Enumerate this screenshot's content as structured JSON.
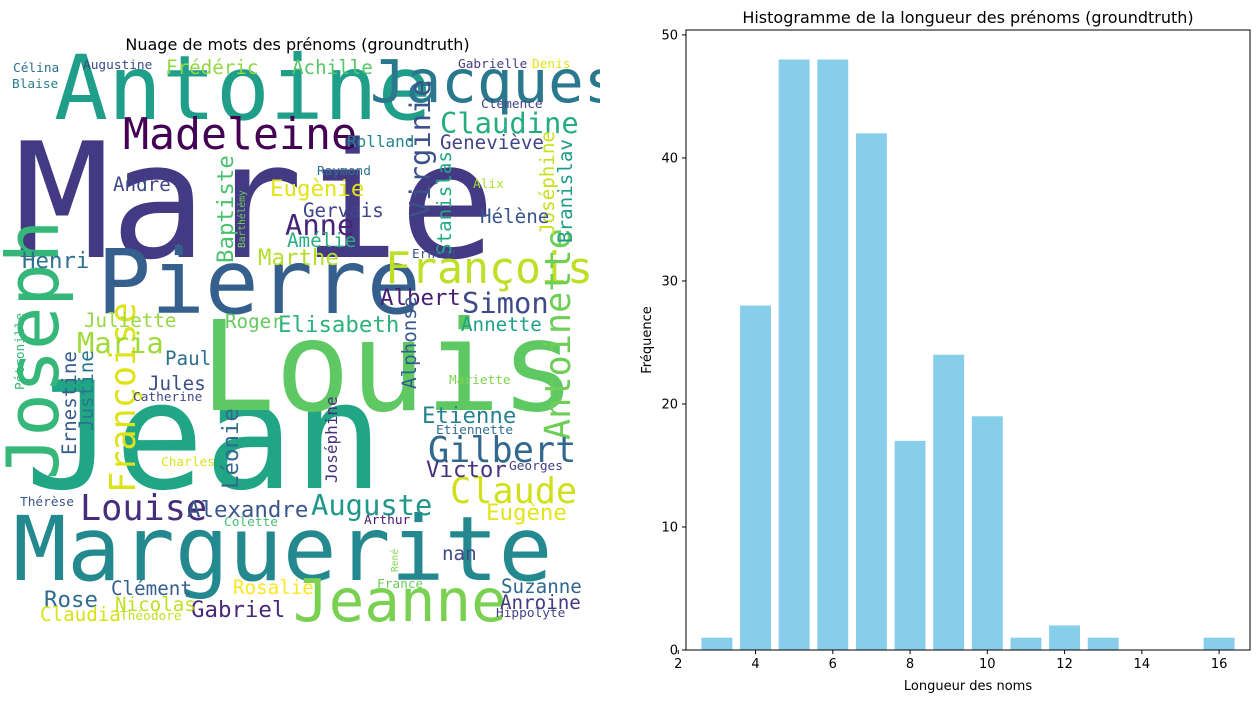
{
  "wordcloud": {
    "title": "Nuage de mots des prénoms (groundtruth)",
    "words": [
      {
        "text": "Marie",
        "size": 1.0,
        "color": "#443983"
      },
      {
        "text": "Jean",
        "size": 0.93,
        "color": "#21a685"
      },
      {
        "text": "Louis",
        "size": 0.78,
        "color": "#5ec962"
      },
      {
        "text": "Marguerite",
        "size": 0.56,
        "color": "#23898e"
      },
      {
        "text": "Pierre",
        "size": 0.56,
        "color": "#355f8d"
      },
      {
        "text": "Antoine",
        "size": 0.56,
        "color": "#1f9e89"
      },
      {
        "text": "Joseph",
        "size": 0.45,
        "color": "#35b779"
      },
      {
        "text": "Jacques",
        "size": 0.37,
        "color": "#2a788e"
      },
      {
        "text": "Jeanne",
        "size": 0.37,
        "color": "#7ad151"
      },
      {
        "text": "François",
        "size": 0.27,
        "color": "#bddf26"
      },
      {
        "text": "Madeleine",
        "size": 0.27,
        "color": "#440154"
      },
      {
        "text": "Antoinette",
        "size": 0.22,
        "color": "#6ece58"
      },
      {
        "text": "Françoise",
        "size": 0.22,
        "color": "#dde318"
      },
      {
        "text": "Gilbert",
        "size": 0.22,
        "color": "#31688e"
      },
      {
        "text": "Louise",
        "size": 0.22,
        "color": "#472d7b"
      },
      {
        "text": "Claude",
        "size": 0.22,
        "color": "#d0e11c"
      },
      {
        "text": "Claudine",
        "size": 0.18,
        "color": "#25ac82"
      },
      {
        "text": "Auguste",
        "size": 0.18,
        "color": "#1f978b"
      },
      {
        "text": "Virginie",
        "size": 0.18,
        "color": "#3b528b"
      },
      {
        "text": "Maria",
        "size": 0.18,
        "color": "#a0da39"
      },
      {
        "text": "Simon",
        "size": 0.18,
        "color": "#3e4a89"
      },
      {
        "text": "Anne",
        "size": 0.18,
        "color": "#482576"
      },
      {
        "text": "Marthe",
        "size": 0.14,
        "color": "#b5de2b"
      },
      {
        "text": "Eugènie",
        "size": 0.14,
        "color": "#e2e418"
      },
      {
        "text": "Baptiste",
        "size": 0.14,
        "color": "#4ac16d"
      },
      {
        "text": "Henri",
        "size": 0.14,
        "color": "#2c728e"
      },
      {
        "text": "Albert",
        "size": 0.14,
        "color": "#481f70"
      },
      {
        "text": "Elisabeth",
        "size": 0.14,
        "color": "#2db27d"
      },
      {
        "text": "Etienne",
        "size": 0.14,
        "color": "#26828e"
      },
      {
        "text": "Victor",
        "size": 0.14,
        "color": "#46337f"
      },
      {
        "text": "Alexandre",
        "size": 0.14,
        "color": "#39568c"
      },
      {
        "text": "Eugène",
        "size": 0.14,
        "color": "#e5e419"
      },
      {
        "text": "Rose",
        "size": 0.14,
        "color": "#2f6c8e"
      },
      {
        "text": "Gabriel",
        "size": 0.14,
        "color": "#482878"
      },
      {
        "text": "Léonie",
        "size": 0.14,
        "color": "#306a8e"
      },
      {
        "text": "Stanislas",
        "size": 0.12,
        "color": "#22a884"
      },
      {
        "text": "Joséphine",
        "size": 0.12,
        "color": "#c8e020"
      },
      {
        "text": "Branislav",
        "size": 0.12,
        "color": "#1e9c89"
      },
      {
        "text": "Alphonse",
        "size": 0.12,
        "color": "#38598c"
      },
      {
        "text": "Ernestine",
        "size": 0.12,
        "color": "#365c8d"
      },
      {
        "text": "Justine",
        "size": 0.12,
        "color": "#2a768e"
      },
      {
        "text": "Achille",
        "size": 0.12,
        "color": "#56c667"
      },
      {
        "text": "Frédéric",
        "size": 0.12,
        "color": "#93d741"
      },
      {
        "text": "Geneviève",
        "size": 0.12,
        "color": "#414487"
      },
      {
        "text": "Hélène",
        "size": 0.12,
        "color": "#3a548c"
      },
      {
        "text": "André",
        "size": 0.12,
        "color": "#3f4788"
      },
      {
        "text": "Gervais",
        "size": 0.12,
        "color": "#404588"
      },
      {
        "text": "Amélie",
        "size": 0.12,
        "color": "#29af7f"
      },
      {
        "text": "Juliette",
        "size": 0.12,
        "color": "#95d840"
      },
      {
        "text": "Roger",
        "size": 0.12,
        "color": "#65cb5e"
      },
      {
        "text": "Annette",
        "size": 0.12,
        "color": "#1fa188"
      },
      {
        "text": "Paul",
        "size": 0.12,
        "color": "#2d708e"
      },
      {
        "text": "Jules",
        "size": 0.12,
        "color": "#3d4d8a"
      },
      {
        "text": "Suzanne",
        "size": 0.12,
        "color": "#31668e"
      },
      {
        "text": "Anroine",
        "size": 0.12,
        "color": "#443a83"
      },
      {
        "text": "Clément",
        "size": 0.12,
        "color": "#34608d"
      },
      {
        "text": "Nicolas",
        "size": 0.12,
        "color": "#c0df25"
      },
      {
        "text": "Rosalie",
        "size": 0.12,
        "color": "#fde725"
      },
      {
        "text": "Claudia",
        "size": 0.12,
        "color": "#d8e219"
      },
      {
        "text": "nan",
        "size": 0.12,
        "color": "#3f4889"
      },
      {
        "text": "Joséphine",
        "size": 0.1,
        "color": "#46307e"
      },
      {
        "text": "Rolland",
        "size": 0.1,
        "color": "#25858e"
      },
      {
        "text": "Raymond",
        "size": 0.08,
        "color": "#2c738e"
      },
      {
        "text": "Alix",
        "size": 0.08,
        "color": "#addc30"
      },
      {
        "text": "Ernest",
        "size": 0.08,
        "color": "#3b528b"
      },
      {
        "text": "Clémence",
        "size": 0.08,
        "color": "#414487"
      },
      {
        "text": "Gabrielle",
        "size": 0.08,
        "color": "#443b84"
      },
      {
        "text": "Denis",
        "size": 0.08,
        "color": "#dfe318"
      },
      {
        "text": "Augustine",
        "size": 0.08,
        "color": "#3e4989"
      },
      {
        "text": "Célina",
        "size": 0.08,
        "color": "#2e6f8e"
      },
      {
        "text": "Blaise",
        "size": 0.08,
        "color": "#287d8e"
      },
      {
        "text": "Barthélémy",
        "size": 0.06,
        "color": "#70cf57"
      },
      {
        "text": "Pétronille",
        "size": 0.08,
        "color": "#37b878"
      },
      {
        "text": "Catherine",
        "size": 0.08,
        "color": "#3f4788"
      },
      {
        "text": "Mariette",
        "size": 0.08,
        "color": "#7fd34e"
      },
      {
        "text": "Etiennette",
        "size": 0.08,
        "color": "#2e6e8e"
      },
      {
        "text": "Georges",
        "size": 0.08,
        "color": "#424086"
      },
      {
        "text": "Charles",
        "size": 0.08,
        "color": "#dae319"
      },
      {
        "text": "Thérèse",
        "size": 0.08,
        "color": "#39568c"
      },
      {
        "text": "Colette",
        "size": 0.08,
        "color": "#46c06f"
      },
      {
        "text": "Arthur",
        "size": 0.08,
        "color": "#481769"
      },
      {
        "text": "René",
        "size": 0.06,
        "color": "#84d44b"
      },
      {
        "text": "France",
        "size": 0.08,
        "color": "#6ccd5a"
      },
      {
        "text": "Théodore",
        "size": 0.08,
        "color": "#c2df23"
      },
      {
        "text": "Hippolyte",
        "size": 0.08,
        "color": "#424186"
      }
    ]
  },
  "chart_data": {
    "type": "bar",
    "title": "Histogramme de la longueur des prénoms (groundtruth)",
    "xlabel": "Longueur des noms",
    "ylabel": "Fréquence",
    "x": [
      3,
      4,
      5,
      6,
      7,
      8,
      9,
      10,
      11,
      12,
      13,
      16
    ],
    "values": [
      1,
      28,
      48,
      48,
      42,
      17,
      24,
      19,
      1,
      2,
      1,
      1
    ],
    "bar_width": 0.8,
    "bar_color": "#87ceeb",
    "xlim": [
      2.2,
      16.8
    ],
    "ylim": [
      0,
      50.4
    ],
    "xticks": [
      2,
      4,
      6,
      8,
      10,
      12,
      14,
      16
    ],
    "yticks": [
      0,
      10,
      20,
      30,
      40,
      50
    ],
    "grid": false
  }
}
